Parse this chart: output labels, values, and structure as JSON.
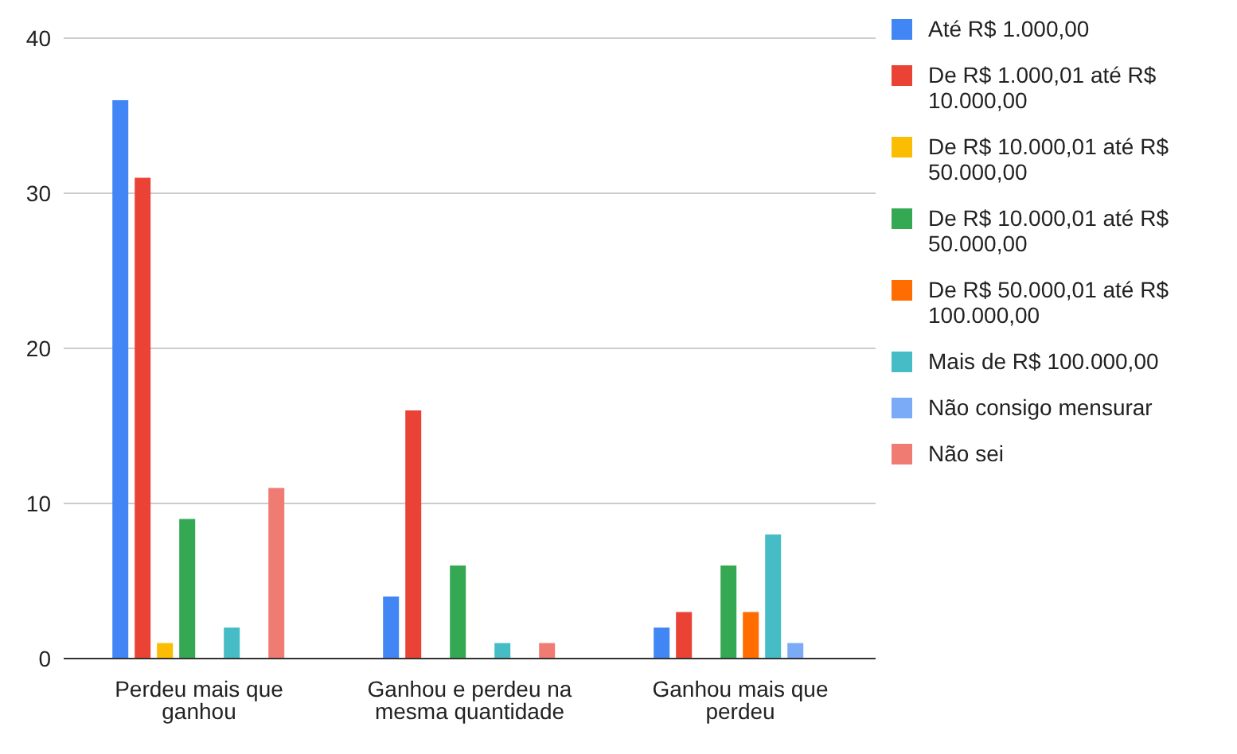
{
  "chart_data": {
    "type": "bar",
    "categories": [
      "Perdeu mais que ganhou",
      "Ganhou e perdeu na mesma quantidade",
      "Ganhou mais que perdeu"
    ],
    "series": [
      {
        "name": "Até R$ 1.000,00",
        "color": "#4285f4",
        "values": [
          36,
          4,
          2
        ]
      },
      {
        "name": "De R$ 1.000,01 até R$ 10.000,00",
        "color": "#ea4335",
        "values": [
          31,
          16,
          3
        ]
      },
      {
        "name": "De R$ 10.000,01 até R$ 50.000,00",
        "color": "#fbbc04",
        "values": [
          1,
          0,
          0
        ]
      },
      {
        "name": "De R$ 10.000,01 até R$ 50.000,00",
        "color": "#34a853",
        "values": [
          9,
          6,
          6
        ]
      },
      {
        "name": "De R$ 50.000,01 até R$ 100.000,00",
        "color": "#ff6d01",
        "values": [
          0,
          0,
          3
        ]
      },
      {
        "name": "Mais de  R$ 100.000,00",
        "color": "#46bdc6",
        "values": [
          2,
          1,
          8
        ]
      },
      {
        "name": "Não consigo mensurar",
        "color": "#7baaf7",
        "values": [
          0,
          0,
          1
        ]
      },
      {
        "name": "Não sei",
        "color": "#f07b72",
        "values": [
          11,
          1,
          0
        ]
      }
    ],
    "ylim": [
      0,
      40
    ],
    "yticks": [
      0,
      10,
      20,
      30,
      40
    ],
    "grid": "y",
    "legend": "right"
  }
}
